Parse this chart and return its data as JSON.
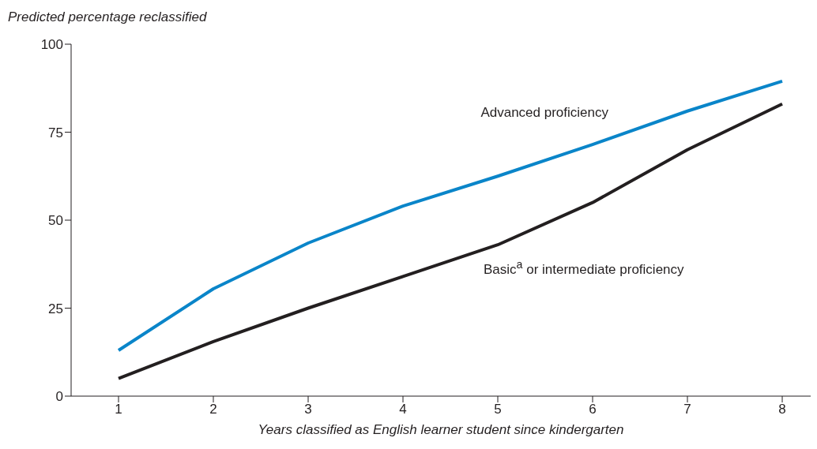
{
  "chart_data": {
    "type": "line",
    "ylabel": "Predicted percentage reclassified",
    "xlabel": "Years classified as English learner student since kindergarten",
    "x": [
      1,
      2,
      3,
      4,
      5,
      6,
      7,
      8
    ],
    "series": [
      {
        "name": "Advanced proficiency",
        "color": "#0a85c9",
        "values": [
          13,
          30.5,
          43.5,
          54,
          62.5,
          71.5,
          81,
          89.5
        ]
      },
      {
        "name": "Basic$^{a}$ or intermediate proficiency",
        "color": "#231f20",
        "values": [
          5,
          15.5,
          25,
          34,
          43,
          55,
          70,
          83
        ]
      }
    ],
    "xlim": [
      0.5,
      8.3
    ],
    "xticks": [
      1,
      2,
      3,
      4,
      5,
      6,
      7,
      8
    ],
    "ylim": [
      0,
      100
    ],
    "yticks": [
      0,
      25,
      50,
      75,
      100
    ],
    "grid": false,
    "legend": false,
    "marker": "none",
    "line_style": "solid"
  }
}
